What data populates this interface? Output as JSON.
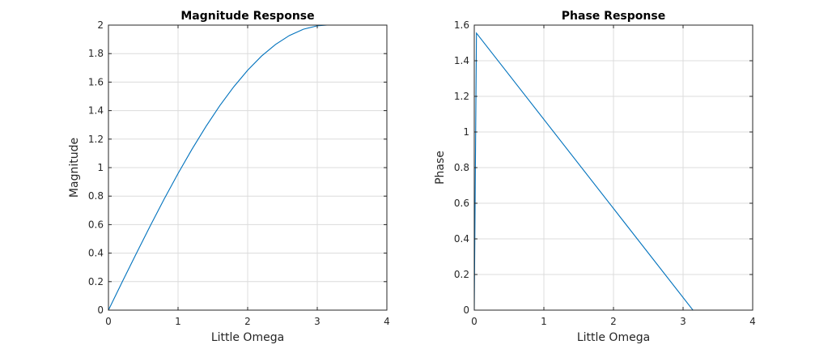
{
  "chart_data": [
    {
      "type": "line",
      "title": "Magnitude Response",
      "xlabel": "Little Omega",
      "ylabel": "Magnitude",
      "xlim": [
        0,
        4
      ],
      "ylim": [
        0,
        2
      ],
      "xticks": [
        0,
        1,
        2,
        3,
        4
      ],
      "yticks": [
        0,
        0.2,
        0.4,
        0.6,
        0.8,
        1,
        1.2,
        1.4,
        1.6,
        1.8,
        2
      ],
      "grid": true,
      "color": "#0072BD",
      "series": [
        {
          "x": [
            0,
            0.2,
            0.4,
            0.6,
            0.8,
            1.0,
            1.2,
            1.4,
            1.6,
            1.8,
            2.0,
            2.2,
            2.4,
            2.6,
            2.8,
            3.0,
            3.1416
          ],
          "values": [
            0,
            0.2,
            0.397,
            0.591,
            0.779,
            0.959,
            1.129,
            1.288,
            1.435,
            1.567,
            1.683,
            1.783,
            1.864,
            1.927,
            1.971,
            1.995,
            2.0
          ]
        }
      ]
    },
    {
      "type": "line",
      "title": "Phase Response",
      "xlabel": "Little Omega",
      "ylabel": "Phase",
      "xlim": [
        0,
        4
      ],
      "ylim": [
        0,
        1.6
      ],
      "xticks": [
        0,
        1,
        2,
        3,
        4
      ],
      "yticks": [
        0,
        0.2,
        0.4,
        0.6,
        0.8,
        1,
        1.2,
        1.4,
        1.6
      ],
      "grid": true,
      "color": "#0072BD",
      "series": [
        {
          "x": [
            0,
            0.0314,
            3.1416
          ],
          "values": [
            0,
            1.555,
            0
          ]
        }
      ]
    }
  ]
}
